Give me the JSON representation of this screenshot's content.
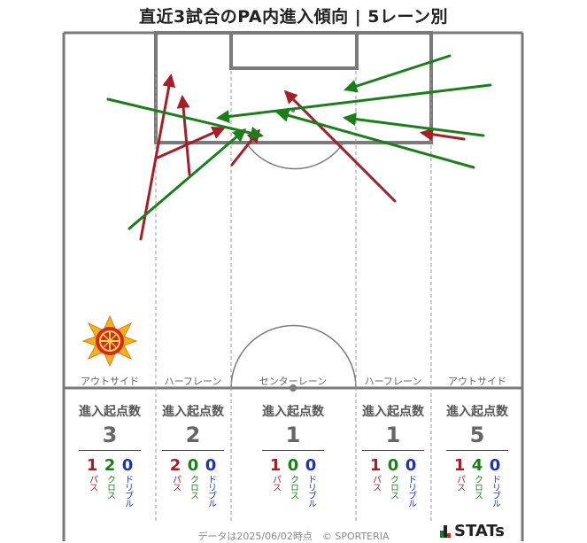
{
  "title": "直近3試合のPA内進入傾向 | 5レーン別",
  "colors": {
    "pass": "#a51f28",
    "cross": "#1a7f1a",
    "dribble": "#1f34b5",
    "pitch_line": "#7a7a7a"
  },
  "lanes": [
    {
      "label": "アウトサイド",
      "head": "進入起点数",
      "total": "3",
      "pass": "1",
      "cross": "2",
      "dribble": "0"
    },
    {
      "label": "ハーフレーン",
      "head": "進入起点数",
      "total": "2",
      "pass": "2",
      "cross": "0",
      "dribble": "0"
    },
    {
      "label": "センターレーン",
      "head": "進入起点数",
      "total": "1",
      "pass": "1",
      "cross": "0",
      "dribble": "0"
    },
    {
      "label": "ハーフレーン",
      "head": "進入起点数",
      "total": "1",
      "pass": "1",
      "cross": "0",
      "dribble": "0"
    },
    {
      "label": "アウトサイド",
      "head": "進入起点数",
      "total": "5",
      "pass": "1",
      "cross": "4",
      "dribble": "0"
    }
  ],
  "breakdown_labels": {
    "pass": "パス",
    "cross": "クロス",
    "dribble": "ドリブル"
  },
  "footer": "データは2025/06/02時点　© SPORTERIA",
  "brand": "STATs",
  "team_emblem": "team-crest-icon",
  "arrows": [
    {
      "type": "pass",
      "from": [
        159,
        270
      ],
      "to": [
        193,
        86
      ]
    },
    {
      "type": "pass",
      "from": [
        214,
        197
      ],
      "to": [
        206,
        110
      ]
    },
    {
      "type": "pass",
      "from": [
        178,
        178
      ],
      "to": [
        252,
        145
      ]
    },
    {
      "type": "pass",
      "from": [
        262,
        186
      ],
      "to": [
        292,
        148
      ]
    },
    {
      "type": "pass",
      "from": [
        446,
        227
      ],
      "to": [
        323,
        104
      ]
    },
    {
      "type": "pass",
      "from": [
        524,
        157
      ],
      "to": [
        477,
        150
      ]
    },
    {
      "type": "cross",
      "from": [
        146,
        258
      ],
      "to": [
        276,
        147
      ]
    },
    {
      "type": "cross",
      "from": [
        122,
        112
      ],
      "to": [
        295,
        153
      ]
    },
    {
      "type": "cross",
      "from": [
        508,
        63
      ],
      "to": [
        391,
        101
      ]
    },
    {
      "type": "cross",
      "from": [
        554,
        96
      ],
      "to": [
        247,
        133
      ]
    },
    {
      "type": "cross",
      "from": [
        546,
        153
      ],
      "to": [
        390,
        133
      ]
    },
    {
      "type": "cross",
      "from": [
        535,
        189
      ],
      "to": [
        314,
        127
      ]
    }
  ]
}
